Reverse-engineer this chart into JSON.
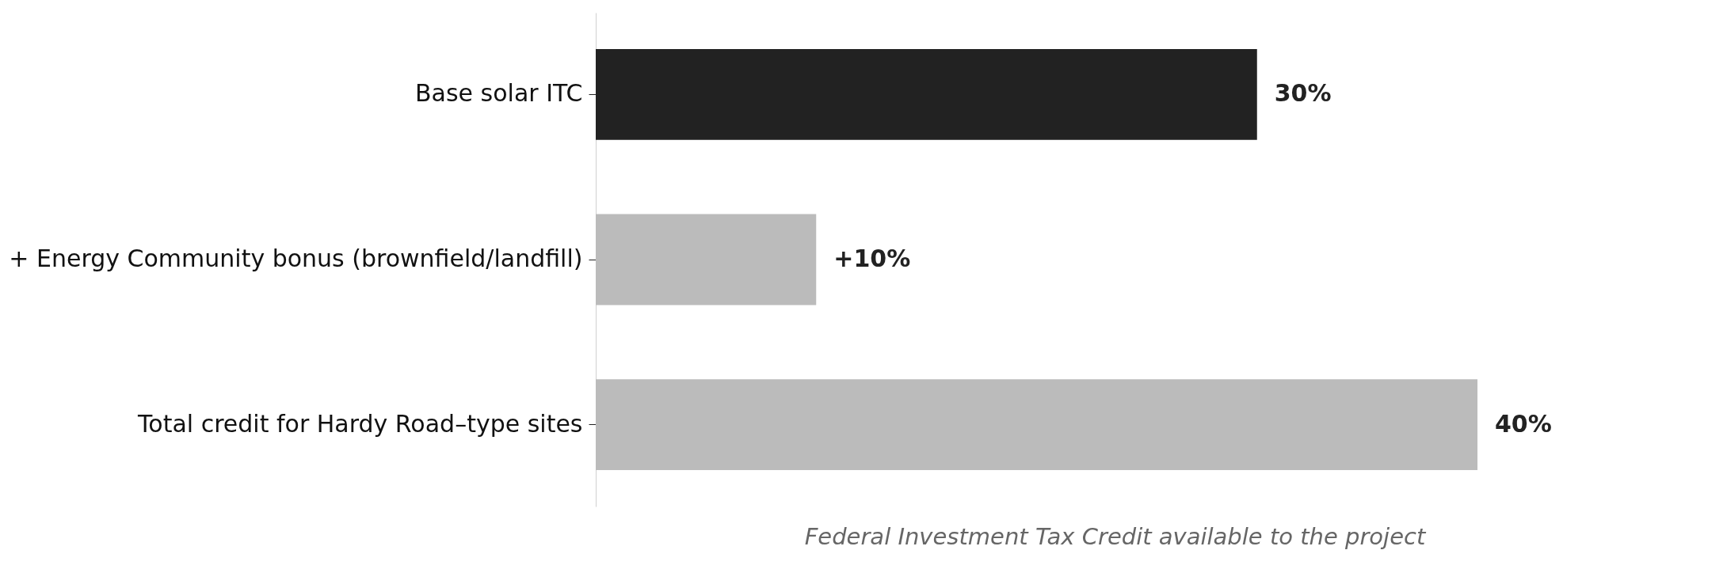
{
  "chart_data": {
    "type": "bar",
    "orientation": "horizontal",
    "xlabel": "Federal Investment Tax Credit available to the project",
    "categories": [
      "Base solar ITC",
      "+ Energy Community bonus (brownfield/landfill)",
      "Total credit for Hardy Road–type sites"
    ],
    "values": [
      30,
      10,
      40
    ],
    "colors": [
      "#222222",
      "#bbbbbb",
      "#bbbbbb"
    ],
    "value_labels": [
      "30%",
      "+10%",
      "40%"
    ],
    "tick_labels": "y"
  }
}
